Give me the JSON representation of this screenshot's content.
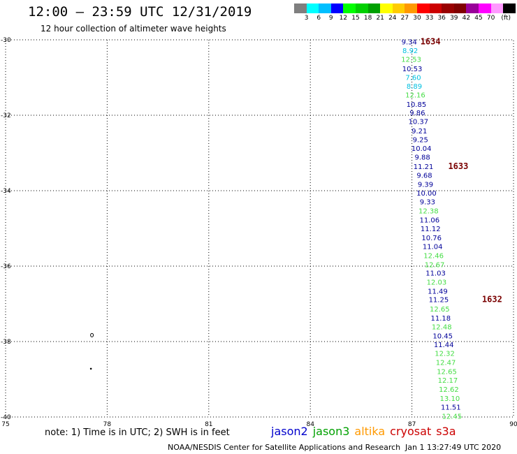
{
  "header": {
    "title": "12:00 – 23:59 UTC 12/31/2019",
    "subtitle": "12 hour collection of altimeter wave heights"
  },
  "colorbar": {
    "colors": [
      "#7f7f7f",
      "#00ffff",
      "#00bfff",
      "#0000ff",
      "#00ff00",
      "#00d000",
      "#00a000",
      "#ffff00",
      "#ffcc00",
      "#ff9900",
      "#ff0000",
      "#cc0000",
      "#990000",
      "#800000",
      "#990099",
      "#ff00ff",
      "#ff99ff",
      "#000000"
    ],
    "labels": [
      "3",
      "6",
      "9",
      "12",
      "15",
      "18",
      "21",
      "24",
      "27",
      "30",
      "33",
      "36",
      "39",
      "42",
      "45",
      "70",
      "(ft)"
    ]
  },
  "map": {
    "lon_range": [
      75,
      90
    ],
    "lat_range": [
      -30,
      -40
    ],
    "lon_ticks": [
      "75",
      "78",
      "81",
      "84",
      "87",
      "90"
    ],
    "lat_ticks": [
      "-30",
      "-32",
      "-34",
      "-36",
      "-38",
      "-40"
    ],
    "grid": "dotted",
    "islands": [
      {
        "lon": 77.55,
        "lat": -37.83,
        "name": "island-1"
      },
      {
        "lon": 77.52,
        "lat": -38.72,
        "name": "island-2"
      }
    ]
  },
  "satellite_colors": {
    "jason2": "#0000cc",
    "jason3": "#00a000",
    "altika": "#ff9900",
    "cryosat": "#cc0000",
    "s3a": "#cc0000",
    "swh_dark": "#000099",
    "swh_light_green": "#44dd44",
    "swh_cyan": "#00c0e0",
    "time_label": "#7a0000"
  },
  "observations": [
    {
      "lat": -30.05,
      "lon": 86.92,
      "value": "9.34",
      "color": "swh_dark"
    },
    {
      "lat": -30.28,
      "lon": 86.95,
      "value": "8.92",
      "color": "swh_cyan"
    },
    {
      "lat": -30.51,
      "lon": 86.98,
      "value": "12.53",
      "color": "swh_light_green"
    },
    {
      "lat": -30.76,
      "lon": 87.01,
      "value": "10.53",
      "color": "swh_dark"
    },
    {
      "lat": -30.99,
      "lon": 87.04,
      "value": "7.60",
      "color": "swh_cyan"
    },
    {
      "lat": -31.22,
      "lon": 87.07,
      "value": "8.89",
      "color": "swh_cyan"
    },
    {
      "lat": -31.45,
      "lon": 87.1,
      "value": "12.16",
      "color": "swh_light_green"
    },
    {
      "lat": -31.7,
      "lon": 87.13,
      "value": "10.85",
      "color": "swh_dark"
    },
    {
      "lat": -31.93,
      "lon": 87.16,
      "value": "9.86",
      "color": "swh_dark"
    },
    {
      "lat": -32.16,
      "lon": 87.19,
      "value": "10.37",
      "color": "swh_dark"
    },
    {
      "lat": -32.41,
      "lon": 87.22,
      "value": "9.21",
      "color": "swh_dark"
    },
    {
      "lat": -32.64,
      "lon": 87.25,
      "value": "9.25",
      "color": "swh_dark"
    },
    {
      "lat": -32.87,
      "lon": 87.28,
      "value": "10.04",
      "color": "swh_dark"
    },
    {
      "lat": -33.1,
      "lon": 87.31,
      "value": "9.88",
      "color": "swh_dark"
    },
    {
      "lat": -33.35,
      "lon": 87.34,
      "value": "11.21",
      "color": "swh_dark"
    },
    {
      "lat": -33.58,
      "lon": 87.37,
      "value": "9.68",
      "color": "swh_dark"
    },
    {
      "lat": -33.82,
      "lon": 87.4,
      "value": "9.39",
      "color": "swh_dark"
    },
    {
      "lat": -34.06,
      "lon": 87.43,
      "value": "10.00",
      "color": "swh_dark"
    },
    {
      "lat": -34.29,
      "lon": 87.46,
      "value": "9.33",
      "color": "swh_dark"
    },
    {
      "lat": -34.53,
      "lon": 87.49,
      "value": "12.38",
      "color": "swh_light_green"
    },
    {
      "lat": -34.77,
      "lon": 87.52,
      "value": "11.06",
      "color": "swh_dark"
    },
    {
      "lat": -35.0,
      "lon": 87.55,
      "value": "11.12",
      "color": "swh_dark"
    },
    {
      "lat": -35.24,
      "lon": 87.58,
      "value": "10.76",
      "color": "swh_dark"
    },
    {
      "lat": -35.47,
      "lon": 87.61,
      "value": "11.04",
      "color": "swh_dark"
    },
    {
      "lat": -35.71,
      "lon": 87.64,
      "value": "12.46",
      "color": "swh_light_green"
    },
    {
      "lat": -35.95,
      "lon": 87.67,
      "value": "12.67",
      "color": "swh_light_green"
    },
    {
      "lat": -36.18,
      "lon": 87.7,
      "value": "11.03",
      "color": "swh_dark"
    },
    {
      "lat": -36.42,
      "lon": 87.73,
      "value": "12.03",
      "color": "swh_light_green"
    },
    {
      "lat": -36.66,
      "lon": 87.76,
      "value": "11.49",
      "color": "swh_dark"
    },
    {
      "lat": -36.88,
      "lon": 87.79,
      "value": "11.25",
      "color": "swh_dark"
    },
    {
      "lat": -37.13,
      "lon": 87.82,
      "value": "12.65",
      "color": "swh_light_green"
    },
    {
      "lat": -37.37,
      "lon": 87.85,
      "value": "11.18",
      "color": "swh_dark"
    },
    {
      "lat": -37.6,
      "lon": 87.88,
      "value": "12.48",
      "color": "swh_light_green"
    },
    {
      "lat": -37.84,
      "lon": 87.91,
      "value": "10.45",
      "color": "swh_dark"
    },
    {
      "lat": -38.07,
      "lon": 87.94,
      "value": "11.44",
      "color": "swh_dark"
    },
    {
      "lat": -38.31,
      "lon": 87.97,
      "value": "12.32",
      "color": "swh_light_green"
    },
    {
      "lat": -38.55,
      "lon": 88.0,
      "value": "12.47",
      "color": "swh_light_green"
    },
    {
      "lat": -38.79,
      "lon": 88.03,
      "value": "12.65",
      "color": "swh_light_green"
    },
    {
      "lat": -39.02,
      "lon": 88.06,
      "value": "12.17",
      "color": "swh_light_green"
    },
    {
      "lat": -39.26,
      "lon": 88.09,
      "value": "12.62",
      "color": "swh_light_green"
    },
    {
      "lat": -39.5,
      "lon": 88.12,
      "value": "13.10",
      "color": "swh_light_green"
    },
    {
      "lat": -39.73,
      "lon": 88.15,
      "value": "11.51",
      "color": "swh_dark"
    },
    {
      "lat": -39.97,
      "lon": 88.18,
      "value": "12.45",
      "color": "swh_light_green"
    }
  ],
  "time_labels": [
    {
      "lat": -30.05,
      "lon": 87.25,
      "text": "1634"
    },
    {
      "lat": -33.35,
      "lon": 88.07,
      "text": "1633"
    },
    {
      "lat": -36.88,
      "lon": 89.07,
      "text": "1632"
    }
  ],
  "footer": {
    "note": "note: 1) Time is in UTC; 2) SWH is in feet",
    "legend": [
      {
        "label": "jason2",
        "color": "jason2"
      },
      {
        "label": "jason3",
        "color": "jason3"
      },
      {
        "label": "altika",
        "color": "altika"
      },
      {
        "label": "cryosat",
        "color": "cryosat"
      },
      {
        "label": "s3a",
        "color": "s3a"
      }
    ],
    "credit": "NOAA/NESDIS Center for Satellite Applications and Research",
    "timestamp": "Jan  1 13:27:49 UTC 2020"
  }
}
